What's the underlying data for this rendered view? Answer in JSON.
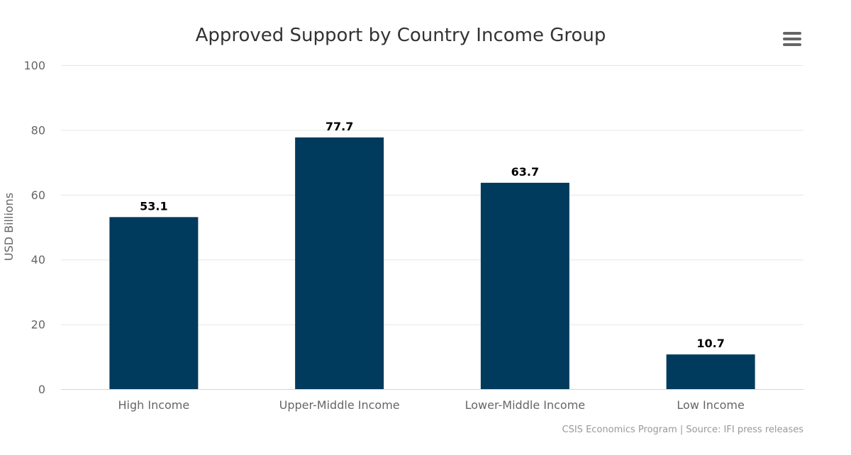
{
  "chart_data": {
    "type": "bar",
    "title": "Approved Support by Country Income Group",
    "ylabel": "USD Billions",
    "xlabel": "",
    "categories": [
      "High Income",
      "Upper-Middle Income",
      "Lower-Middle Income",
      "Low Income"
    ],
    "values": [
      53.1,
      77.7,
      63.7,
      10.7
    ],
    "data_labels": [
      "53.1",
      "77.7",
      "63.7",
      "10.7"
    ],
    "ylim": [
      0,
      100
    ],
    "yticks": [
      "0",
      "20",
      "40",
      "60",
      "80",
      "100"
    ],
    "ytick_values": [
      0,
      20,
      40,
      60,
      80,
      100
    ],
    "bar_color": "#003a5d",
    "grid": true,
    "legend": "none"
  },
  "credits": "CSIS Economics Program | Source: IFI press releases",
  "menu": {
    "icon": "hamburger-menu-icon",
    "color": "#666666"
  }
}
